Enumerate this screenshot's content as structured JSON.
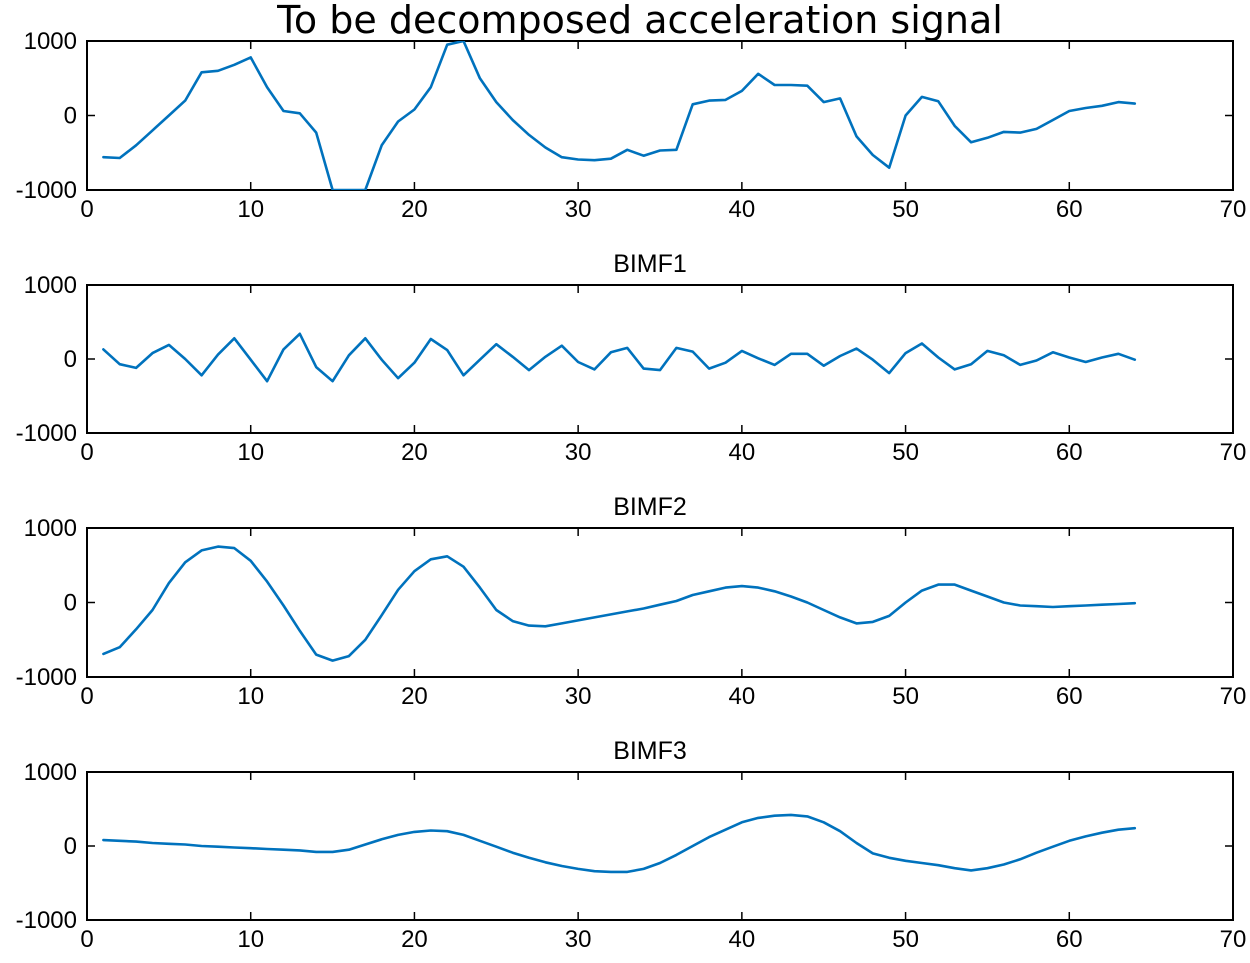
{
  "chart_data": [
    {
      "type": "line",
      "title": "To be decomposed acceleration signal",
      "xlim": [
        0,
        70
      ],
      "ylim": [
        -1000,
        1000
      ],
      "xticks": [
        "0",
        "10",
        "20",
        "30",
        "40",
        "50",
        "60",
        "70"
      ],
      "yticks": [
        "1000",
        "0",
        "-1000"
      ],
      "grid": false,
      "line_color": "#0072BD",
      "x": [
        1,
        2,
        3,
        4,
        5,
        6,
        7,
        8,
        9,
        10,
        11,
        12,
        13,
        14,
        15,
        16,
        17,
        18,
        19,
        20,
        21,
        22,
        23,
        24,
        25,
        26,
        27,
        28,
        29,
        30,
        31,
        32,
        33,
        34,
        35,
        36,
        37,
        38,
        39,
        40,
        41,
        42,
        43,
        44,
        45,
        46,
        47,
        48,
        49,
        50,
        51,
        52,
        53,
        54,
        55,
        56,
        57,
        58,
        59,
        60,
        61,
        62,
        63,
        64
      ],
      "y": [
        -560,
        -570,
        -400,
        -200,
        0,
        200,
        580,
        600,
        680,
        780,
        380,
        60,
        30,
        -230,
        -1000,
        -1000,
        -1000,
        -400,
        -80,
        80,
        380,
        950,
        1000,
        500,
        180,
        -60,
        -260,
        -430,
        -560,
        -590,
        -600,
        -580,
        -460,
        -540,
        -470,
        -460,
        150,
        200,
        210,
        330,
        560,
        410,
        410,
        400,
        180,
        230,
        -280,
        -530,
        -700,
        0,
        250,
        190,
        -140,
        -360,
        -300,
        -220,
        -230,
        -180,
        -60,
        60,
        100,
        130,
        180,
        160
      ]
    },
    {
      "type": "line",
      "title": "BIMF1",
      "xlim": [
        0,
        70
      ],
      "ylim": [
        -1000,
        1000
      ],
      "xticks": [
        "0",
        "10",
        "20",
        "30",
        "40",
        "50",
        "60",
        "70"
      ],
      "yticks": [
        "1000",
        "0",
        "-1000"
      ],
      "grid": false,
      "line_color": "#0072BD",
      "x": [
        1,
        2,
        3,
        4,
        5,
        6,
        7,
        8,
        9,
        10,
        11,
        12,
        13,
        14,
        15,
        16,
        17,
        18,
        19,
        20,
        21,
        22,
        23,
        24,
        25,
        26,
        27,
        28,
        29,
        30,
        31,
        32,
        33,
        34,
        35,
        36,
        37,
        38,
        39,
        40,
        41,
        42,
        43,
        44,
        45,
        46,
        47,
        48,
        49,
        50,
        51,
        52,
        53,
        54,
        55,
        56,
        57,
        58,
        59,
        60,
        61,
        62,
        63,
        64
      ],
      "y": [
        130,
        -70,
        -120,
        80,
        190,
        0,
        -220,
        60,
        280,
        -10,
        -300,
        130,
        340,
        -110,
        -300,
        50,
        280,
        -10,
        -260,
        -50,
        270,
        120,
        -220,
        -10,
        200,
        30,
        -150,
        30,
        180,
        -40,
        -140,
        90,
        150,
        -130,
        -150,
        150,
        100,
        -130,
        -50,
        110,
        10,
        -80,
        70,
        70,
        -90,
        40,
        140,
        -10,
        -190,
        80,
        210,
        20,
        -140,
        -70,
        110,
        50,
        -80,
        -20,
        90,
        20,
        -40,
        20,
        70,
        -10
      ]
    },
    {
      "type": "line",
      "title": "BIMF2",
      "xlim": [
        0,
        70
      ],
      "ylim": [
        -1000,
        1000
      ],
      "xticks": [
        "0",
        "10",
        "20",
        "30",
        "40",
        "50",
        "60",
        "70"
      ],
      "yticks": [
        "1000",
        "0",
        "-1000"
      ],
      "grid": false,
      "line_color": "#0072BD",
      "x": [
        1,
        2,
        3,
        4,
        5,
        6,
        7,
        8,
        9,
        10,
        11,
        12,
        13,
        14,
        15,
        16,
        17,
        18,
        19,
        20,
        21,
        22,
        23,
        24,
        25,
        26,
        27,
        28,
        29,
        30,
        31,
        32,
        33,
        34,
        35,
        36,
        37,
        38,
        39,
        40,
        41,
        42,
        43,
        44,
        45,
        46,
        47,
        48,
        49,
        50,
        51,
        52,
        53,
        54,
        55,
        56,
        57,
        58,
        59,
        60,
        61,
        62,
        63,
        64
      ],
      "y": [
        -690,
        -600,
        -360,
        -100,
        260,
        540,
        700,
        750,
        730,
        560,
        280,
        -40,
        -380,
        -700,
        -780,
        -720,
        -500,
        -170,
        170,
        420,
        580,
        620,
        480,
        200,
        -100,
        -250,
        -310,
        -320,
        -280,
        -240,
        -200,
        -160,
        -120,
        -80,
        -30,
        20,
        100,
        150,
        200,
        220,
        200,
        150,
        80,
        0,
        -100,
        -200,
        -280,
        -260,
        -180,
        0,
        160,
        240,
        240,
        160,
        80,
        0,
        -40,
        -50,
        -60,
        -50,
        -40,
        -30,
        -20,
        -10
      ]
    },
    {
      "type": "line",
      "title": "BIMF3",
      "xlim": [
        0,
        70
      ],
      "ylim": [
        -1000,
        1000
      ],
      "xticks": [
        "0",
        "10",
        "20",
        "30",
        "40",
        "50",
        "60",
        "70"
      ],
      "yticks": [
        "1000",
        "0",
        "-1000"
      ],
      "grid": false,
      "line_color": "#0072BD",
      "x": [
        1,
        2,
        3,
        4,
        5,
        6,
        7,
        8,
        9,
        10,
        11,
        12,
        13,
        14,
        15,
        16,
        17,
        18,
        19,
        20,
        21,
        22,
        23,
        24,
        25,
        26,
        27,
        28,
        29,
        30,
        31,
        32,
        33,
        34,
        35,
        36,
        37,
        38,
        39,
        40,
        41,
        42,
        43,
        44,
        45,
        46,
        47,
        48,
        49,
        50,
        51,
        52,
        53,
        54,
        55,
        56,
        57,
        58,
        59,
        60,
        61,
        62,
        63,
        64
      ],
      "y": [
        80,
        70,
        60,
        40,
        30,
        20,
        0,
        -10,
        -20,
        -30,
        -40,
        -50,
        -60,
        -80,
        -80,
        -50,
        20,
        90,
        150,
        190,
        210,
        200,
        150,
        70,
        -10,
        -90,
        -160,
        -220,
        -270,
        -310,
        -340,
        -350,
        -350,
        -310,
        -230,
        -120,
        0,
        120,
        220,
        320,
        380,
        410,
        420,
        400,
        320,
        200,
        40,
        -100,
        -160,
        -200,
        -230,
        -260,
        -300,
        -330,
        -300,
        -250,
        -180,
        -90,
        -10,
        70,
        130,
        180,
        220,
        240
      ]
    }
  ]
}
